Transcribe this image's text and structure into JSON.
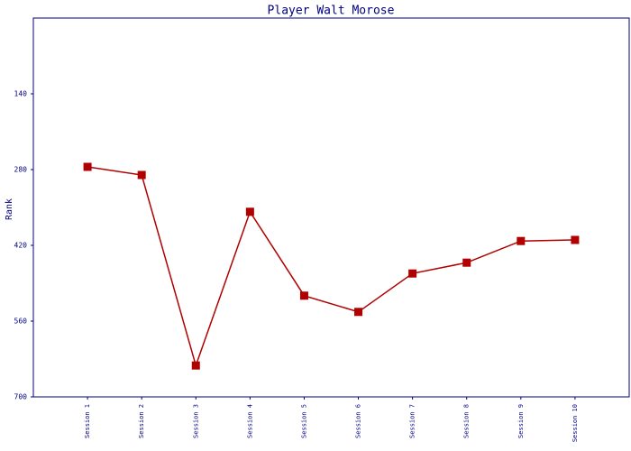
{
  "chart_data": {
    "type": "line",
    "title": "Player Walt Morose",
    "y_label": "Rank",
    "categories": [
      "Session 1",
      "Session 2",
      "Session 3",
      "Session 4",
      "Session 5",
      "Session 6",
      "Session 7",
      "Session 8",
      "Session 9",
      "Session 10"
    ],
    "series": [
      {
        "name": "Rank",
        "color": "#b00000",
        "values": [
          275,
          290,
          642,
          358,
          513,
          543,
          472,
          452,
          412,
          410
        ]
      }
    ],
    "ylim": [
      700,
      0
    ],
    "yticks": [
      140,
      280,
      420,
      560,
      700
    ],
    "grid": false
  }
}
